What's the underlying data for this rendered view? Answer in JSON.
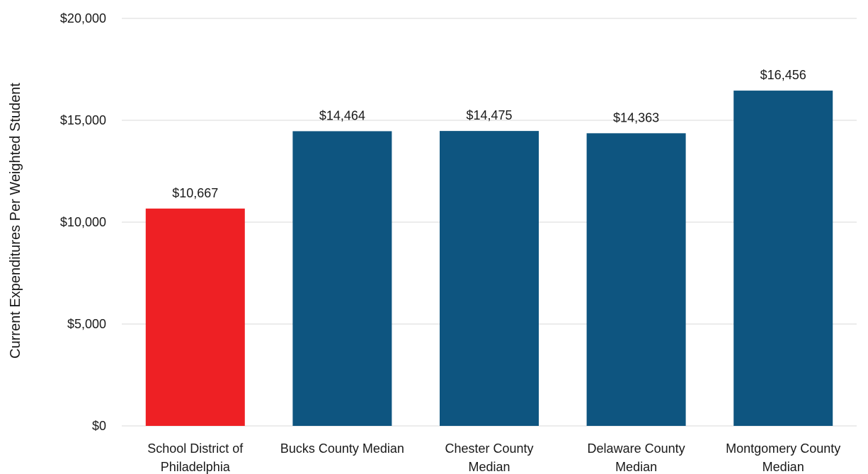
{
  "chart_data": {
    "type": "bar",
    "categories": [
      "School District of Philadelphia",
      "Bucks County Median",
      "Chester County Median",
      "Delaware County Median",
      "Montgomery County Median"
    ],
    "values": [
      10667,
      14464,
      14475,
      14363,
      16456
    ],
    "data_labels": [
      "$10,667",
      "$14,464",
      "$14,475",
      "$14,363",
      "$16,456"
    ],
    "bar_colors": [
      "#ee2024",
      "#0e5580",
      "#0e5580",
      "#0e5580",
      "#0e5580"
    ],
    "ylabel": "Current Expenditures Per Weighted Student",
    "xlabel": "",
    "ylim": [
      0,
      20000
    ],
    "yticks": [
      0,
      5000,
      10000,
      15000,
      20000
    ],
    "ytick_labels": [
      "$0",
      "$5,000",
      "$10,000",
      "$15,000",
      "$20,000"
    ],
    "grid": true,
    "legend": "none"
  }
}
